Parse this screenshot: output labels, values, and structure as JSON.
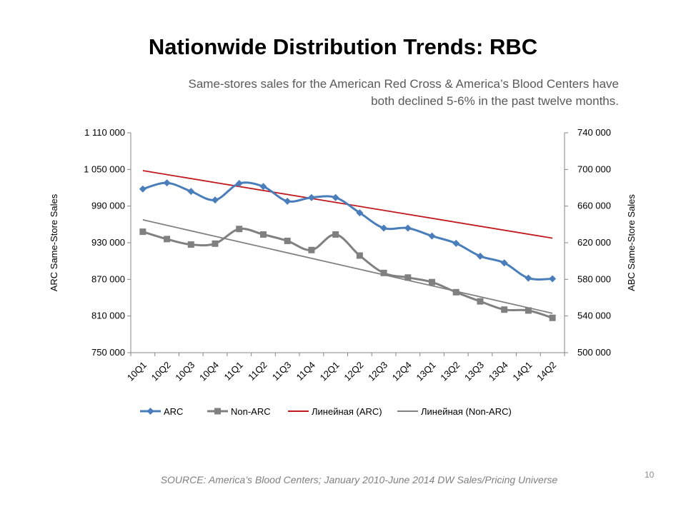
{
  "slide": {
    "title": "Nationwide Distribution Trends: RBC",
    "subtitle_line1": "Same-stores sales for the American Red Cross & America’s Blood Centers have",
    "subtitle_line2": "both declined 5-6% in the past twelve months.",
    "source": "SOURCE: America’s Blood Centers; January 2010-June 2014 DW Sales/Pricing Universe",
    "page_number": "10"
  },
  "chart_data": {
    "type": "line",
    "categories": [
      "10Q1",
      "10Q2",
      "10Q3",
      "10Q4",
      "11Q1",
      "11Q2",
      "11Q3",
      "11Q4",
      "12Q1",
      "12Q2",
      "12Q3",
      "12Q4",
      "13Q1",
      "13Q2",
      "13Q3",
      "13Q4",
      "14Q1",
      "14Q2"
    ],
    "y_left": {
      "label": "ARC Same-Store Sales",
      "ylim": [
        750000,
        1110000
      ],
      "ticks": [
        750000,
        810000,
        870000,
        930000,
        990000,
        1050000,
        1110000
      ],
      "tick_labels": [
        "750 000",
        "810 000",
        "870 000",
        "930 000",
        "990 000",
        "1 050 000",
        "1 110 000"
      ]
    },
    "y_right": {
      "label": "ABC Same-Store Sales",
      "ylim": [
        500000,
        740000
      ],
      "ticks": [
        500000,
        540000,
        580000,
        620000,
        660000,
        700000,
        740000
      ],
      "tick_labels": [
        "500 000",
        "540 000",
        "580 000",
        "620 000",
        "660 000",
        "700 000",
        "740 000"
      ]
    },
    "series": [
      {
        "name": "ARC",
        "axis": "left",
        "color": "#4a7ebb",
        "marker": "diamond",
        "values": [
          1018000,
          1028000,
          1014000,
          1000000,
          1027000,
          1022000,
          998000,
          1004000,
          1004000,
          979000,
          954000,
          954000,
          941000,
          929000,
          908000,
          897000,
          872000,
          871000
        ]
      },
      {
        "name": "Non-ARC",
        "axis": "right",
        "color": "#808080",
        "marker": "square",
        "values": [
          632000,
          624000,
          618000,
          619000,
          635000,
          629000,
          622000,
          612000,
          629000,
          606000,
          587000,
          582000,
          577000,
          566000,
          556000,
          547000,
          546000,
          538000
        ]
      },
      {
        "name": "Линейная (ARC)",
        "axis": "left",
        "color": "#c0191e",
        "trendline_of": "ARC",
        "values": [
          1048000,
          1041500,
          1035000,
          1028500,
          1022000,
          1015500,
          1009000,
          1002500,
          996000,
          989500,
          983000,
          976500,
          970000,
          963500,
          957000,
          950500,
          944000,
          937500
        ]
      },
      {
        "name": "Линейная (Non-ARC)",
        "axis": "right",
        "color": "#808080",
        "trendline_of": "Non-ARC",
        "values": [
          645000,
          639000,
          633000,
          627000,
          621000,
          615000,
          609000,
          603000,
          597000,
          591000,
          585000,
          579000,
          573000,
          567000,
          561000,
          555000,
          549000,
          543000
        ]
      }
    ],
    "legend_position": "bottom",
    "grid": false
  }
}
